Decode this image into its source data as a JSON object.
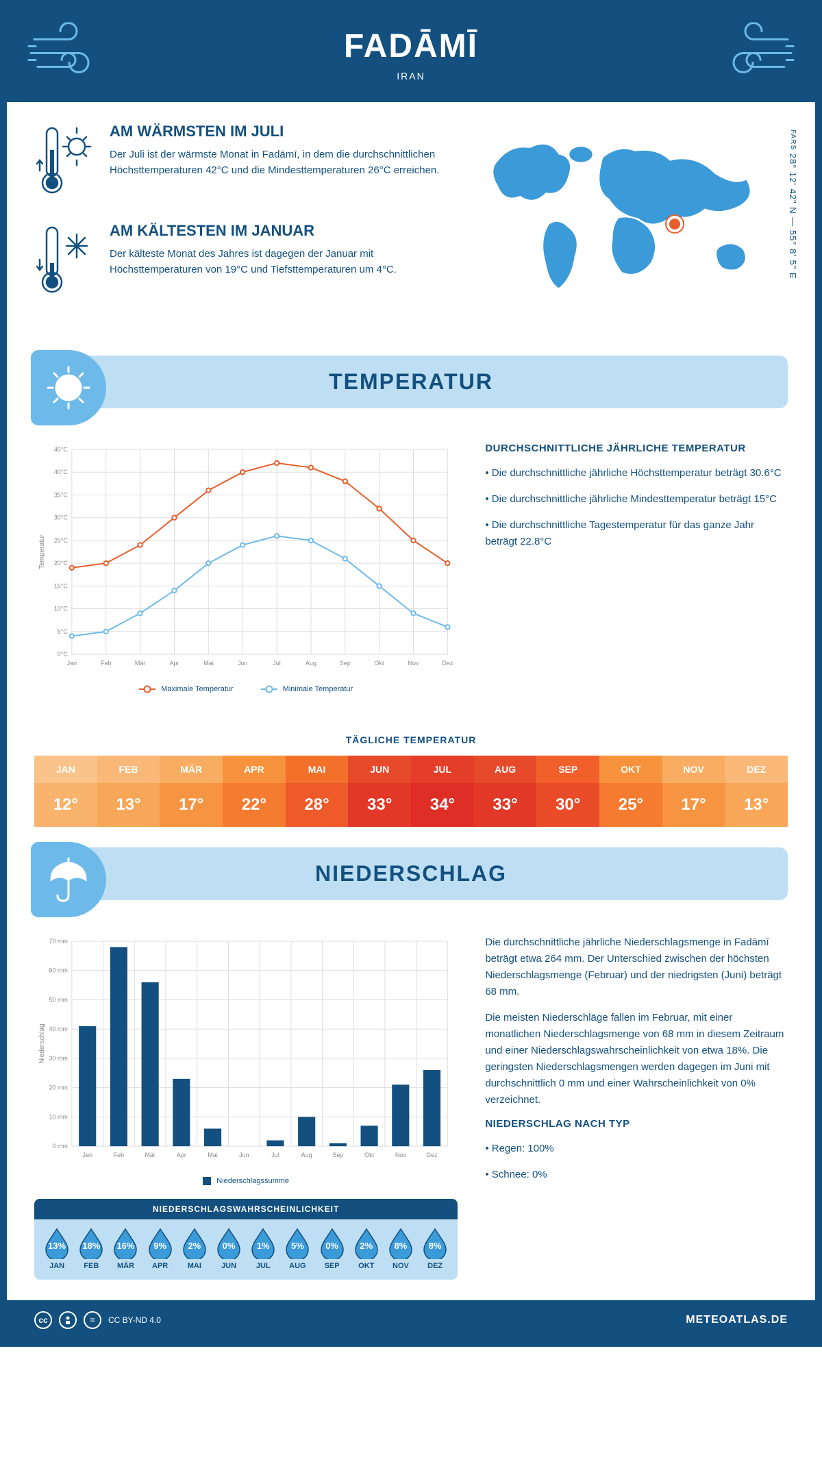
{
  "header": {
    "title": "FADĀMĪ",
    "country": "IRAN"
  },
  "coords": {
    "text": "28° 12' 42\" N — 55° 8' 5\" E",
    "region": "FARS"
  },
  "facts": {
    "warm": {
      "title": "AM WÄRMSTEN IM JULI",
      "text": "Der Juli ist der wärmste Monat in Fadāmī, in dem die durchschnittlichen Höchsttemperaturen 42°C und die Mindesttemperaturen 26°C erreichen."
    },
    "cold": {
      "title": "AM KÄLTESTEN IM JANUAR",
      "text": "Der kälteste Monat des Jahres ist dagegen der Januar mit Höchsttemperaturen von 19°C und Tiefsttemperaturen um 4°C."
    }
  },
  "map": {
    "marker_left_pct": 62,
    "marker_top_pct": 47,
    "fill": "#3b9ad8"
  },
  "sections": {
    "temperature": "TEMPERATUR",
    "precipitation": "NIEDERSCHLAG"
  },
  "months": [
    "Jan",
    "Feb",
    "Mär",
    "Apr",
    "Mai",
    "Jun",
    "Jul",
    "Aug",
    "Sep",
    "Okt",
    "Nov",
    "Dez"
  ],
  "months_upper": [
    "JAN",
    "FEB",
    "MÄR",
    "APR",
    "MAI",
    "JUN",
    "JUL",
    "AUG",
    "SEP",
    "OKT",
    "NOV",
    "DEZ"
  ],
  "temp_chart": {
    "type": "line",
    "max_series": {
      "label": "Maximale Temperatur",
      "color": "#e85d2a",
      "values": [
        19,
        20,
        24,
        30,
        36,
        40,
        42,
        41,
        38,
        32,
        25,
        20
      ]
    },
    "min_series": {
      "label": "Minimale Temperatur",
      "color": "#6dbaea",
      "values": [
        4,
        5,
        9,
        14,
        20,
        24,
        26,
        25,
        21,
        15,
        9,
        6
      ]
    },
    "ylim": [
      0,
      45
    ],
    "ytick_step": 5,
    "yticks": [
      "0°C",
      "5°C",
      "10°C",
      "15°C",
      "20°C",
      "25°C",
      "30°C",
      "35°C",
      "40°C",
      "45°C"
    ],
    "grid_color": "#dddddd",
    "axis_color": "#888888",
    "ylabel": "Temperatur",
    "marker_radius": 3.2,
    "line_width": 2
  },
  "temp_text": {
    "heading": "DURCHSCHNITTLICHE JÄHRLICHE TEMPERATUR",
    "b1": "• Die durchschnittliche jährliche Höchsttemperatur beträgt 30.6°C",
    "b2": "• Die durchschnittliche jährliche Mindesttemperatur beträgt 15°C",
    "b3": "• Die durchschnittliche Tagestemperatur für das ganze Jahr beträgt 22.8°C"
  },
  "daily_temp": {
    "title": "TÄGLICHE TEMPERATUR",
    "values": [
      "12°",
      "13°",
      "17°",
      "22°",
      "28°",
      "33°",
      "34°",
      "33°",
      "30°",
      "25°",
      "17°",
      "13°"
    ],
    "month_colors": [
      "#fac38a",
      "#fab878",
      "#f9ad62",
      "#f7933d",
      "#f3702b",
      "#e74a2a",
      "#e43d28",
      "#e74a2a",
      "#f15f2b",
      "#f7933d",
      "#f9ad62",
      "#fab878"
    ],
    "value_colors": [
      "#f9b36c",
      "#f8a657",
      "#f79442",
      "#f47b30",
      "#ee5a2a",
      "#e23827",
      "#de2e26",
      "#e23827",
      "#ea4c29",
      "#f47b30",
      "#f79442",
      "#f8a657"
    ]
  },
  "precip_chart": {
    "type": "bar",
    "label": "Niederschlagssumme",
    "values": [
      41,
      68,
      56,
      23,
      6,
      0,
      2,
      10,
      1,
      7,
      21,
      26
    ],
    "bar_color": "#13507f",
    "ylim": [
      0,
      70
    ],
    "ytick_step": 10,
    "yticks": [
      "0 mm",
      "10 mm",
      "20 mm",
      "30 mm",
      "40 mm",
      "50 mm",
      "60 mm",
      "70 mm"
    ],
    "grid_color": "#dddddd",
    "axis_color": "#888888",
    "ylabel": "Niederschlag",
    "bar_width": 0.55
  },
  "precip_text": {
    "p1": "Die durchschnittliche jährliche Niederschlagsmenge in Fadāmī beträgt etwa 264 mm. Der Unterschied zwischen der höchsten Niederschlagsmenge (Februar) und der niedrigsten (Juni) beträgt 68 mm.",
    "p2": "Die meisten Niederschläge fallen im Februar, mit einer monatlichen Niederschlagsmenge von 68 mm in diesem Zeitraum und einer Niederschlagswahrscheinlichkeit von etwa 18%. Die geringsten Niederschlagsmengen werden dagegen im Juni mit durchschnittlich 0 mm und einer Wahrscheinlichkeit von 0% verzeichnet.",
    "type_heading": "NIEDERSCHLAG NACH TYP",
    "type1": "• Regen: 100%",
    "type2": "• Schnee: 0%"
  },
  "precip_prob": {
    "title": "NIEDERSCHLAGSWAHRSCHEINLICHKEIT",
    "values": [
      "13%",
      "18%",
      "16%",
      "9%",
      "2%",
      "0%",
      "1%",
      "5%",
      "0%",
      "2%",
      "8%",
      "8%"
    ],
    "fill_color": "#3b9ad8",
    "outline_color": "#13507f"
  },
  "footer": {
    "license": "CC BY-ND 4.0",
    "brand": "METEOATLAS.DE"
  },
  "colors": {
    "primary": "#13507f",
    "light": "#bedff3",
    "accent": "#6dbaea",
    "orange": "#e85d2a"
  }
}
